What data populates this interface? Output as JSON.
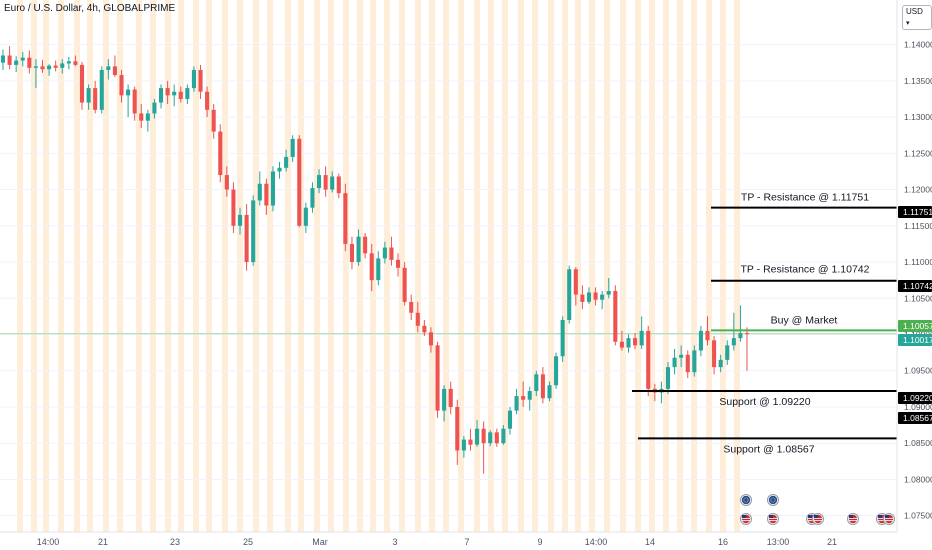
{
  "header": {
    "title": "Euro / U.S. Dollar, 4h, GLOBALPRIME"
  },
  "currency_button": {
    "label": "USD",
    "icon": "chevron-down-icon"
  },
  "colors": {
    "up": "#26a69a",
    "down": "#ef5350",
    "session": "#fde7cc",
    "level": "#000000",
    "buy": "#4caf50",
    "grid": "#f0f3fa",
    "current_line": "#a5d6a7",
    "text": "#131722",
    "axis_text": "#50535e"
  },
  "chart_data": {
    "type": "candlestick",
    "title": "Euro / U.S. Dollar, 4h, GLOBALPRIME",
    "xlabel": "",
    "ylabel": "",
    "ylim": [
      1.0733,
      1.1445
    ],
    "grid": true,
    "y_ticks": [
      "1.14000",
      "1.13500",
      "1.13000",
      "1.12500",
      "1.12000",
      "1.11500",
      "1.11000",
      "1.10500",
      "1.10000",
      "1.09500",
      "1.09000",
      "1.08500",
      "1.08000",
      "1.07500"
    ],
    "x_ticks": [
      "14:00",
      "21",
      "23",
      "25",
      "Mar",
      "3",
      "7",
      "9",
      "14:00",
      "14",
      "16",
      "13:00",
      "21"
    ],
    "price_tags": [
      {
        "name": "tp-2",
        "value": "1.11751",
        "color": "#000000"
      },
      {
        "name": "tp-1",
        "value": "1.10742",
        "color": "#000000"
      },
      {
        "name": "buy-price",
        "value": "1.10057",
        "color": "#4caf50"
      },
      {
        "name": "last-price",
        "value": "1.10017",
        "color": "#26a69a"
      },
      {
        "name": "support-1",
        "value": "1.09220",
        "color": "#000000"
      },
      {
        "name": "support-2",
        "value": "1.08567",
        "color": "#000000"
      }
    ],
    "levels": [
      {
        "name": "tp-resistance-2",
        "price": 1.11751,
        "label": "TP - Resistance @ 1.11751",
        "color": "#000000"
      },
      {
        "name": "tp-resistance-1",
        "price": 1.10742,
        "label": "TP - Resistance @ 1.10742",
        "color": "#000000"
      },
      {
        "name": "buy-level",
        "price": 1.10057,
        "label": "Buy @ Market",
        "color": "#4caf50"
      },
      {
        "name": "support-1",
        "price": 1.0922,
        "label": "Support @ 1.09220",
        "color": "#000000"
      },
      {
        "name": "support-2",
        "price": 1.08567,
        "label": "Support @ 1.08567",
        "color": "#000000"
      }
    ],
    "candles": [
      [
        1.1375,
        1.1393,
        1.1365,
        1.1385
      ],
      [
        1.1385,
        1.1398,
        1.1366,
        1.1372
      ],
      [
        1.1372,
        1.1384,
        1.1362,
        1.1378
      ],
      [
        1.1378,
        1.139,
        1.137,
        1.1382
      ],
      [
        1.1382,
        1.1392,
        1.136,
        1.1368
      ],
      [
        1.1368,
        1.138,
        1.134,
        1.137
      ],
      [
        1.137,
        1.1379,
        1.1361,
        1.1366
      ],
      [
        1.1366,
        1.1373,
        1.1357,
        1.1371
      ],
      [
        1.1371,
        1.1378,
        1.1363,
        1.1368
      ],
      [
        1.1368,
        1.138,
        1.136,
        1.1374
      ],
      [
        1.1374,
        1.1383,
        1.1366,
        1.1377
      ],
      [
        1.1377,
        1.1385,
        1.137,
        1.1372
      ],
      [
        1.1372,
        1.1376,
        1.131,
        1.132
      ],
      [
        1.132,
        1.1345,
        1.131,
        1.134
      ],
      [
        1.134,
        1.135,
        1.1305,
        1.131
      ],
      [
        1.131,
        1.137,
        1.1305,
        1.1365
      ],
      [
        1.1365,
        1.138,
        1.1352,
        1.137
      ],
      [
        1.137,
        1.1385,
        1.1355,
        1.1358
      ],
      [
        1.1358,
        1.1365,
        1.132,
        1.133
      ],
      [
        1.133,
        1.1345,
        1.13,
        1.1338
      ],
      [
        1.1338,
        1.1342,
        1.1295,
        1.1305
      ],
      [
        1.1305,
        1.1318,
        1.1285,
        1.1295
      ],
      [
        1.1295,
        1.131,
        1.128,
        1.1305
      ],
      [
        1.1305,
        1.1325,
        1.1298,
        1.132
      ],
      [
        1.132,
        1.1345,
        1.1312,
        1.134
      ],
      [
        1.134,
        1.135,
        1.1318,
        1.133
      ],
      [
        1.133,
        1.1345,
        1.1315,
        1.1335
      ],
      [
        1.1335,
        1.1342,
        1.132,
        1.1325
      ],
      [
        1.1325,
        1.1345,
        1.1318,
        1.134
      ],
      [
        1.134,
        1.137,
        1.1335,
        1.1365
      ],
      [
        1.1365,
        1.1372,
        1.1325,
        1.1335
      ],
      [
        1.1335,
        1.1342,
        1.13,
        1.131
      ],
      [
        1.131,
        1.1318,
        1.127,
        1.128
      ],
      [
        1.128,
        1.129,
        1.121,
        1.122
      ],
      [
        1.122,
        1.1232,
        1.119,
        1.12
      ],
      [
        1.12,
        1.121,
        1.114,
        1.115
      ],
      [
        1.115,
        1.1175,
        1.1138,
        1.1165
      ],
      [
        1.1165,
        1.118,
        1.1088,
        1.11
      ],
      [
        1.11,
        1.1192,
        1.1095,
        1.1185
      ],
      [
        1.1185,
        1.1225,
        1.1178,
        1.1208
      ],
      [
        1.1208,
        1.1215,
        1.1165,
        1.1178
      ],
      [
        1.1178,
        1.1232,
        1.117,
        1.1225
      ],
      [
        1.1225,
        1.1238,
        1.1215,
        1.123
      ],
      [
        1.123,
        1.1255,
        1.1225,
        1.1245
      ],
      [
        1.1245,
        1.1275,
        1.1238,
        1.127
      ],
      [
        1.127,
        1.1275,
        1.1148,
        1.115
      ],
      [
        1.115,
        1.1182,
        1.114,
        1.1175
      ],
      [
        1.1175,
        1.121,
        1.1168,
        1.1202
      ],
      [
        1.1202,
        1.1228,
        1.1195,
        1.122
      ],
      [
        1.122,
        1.1232,
        1.119,
        1.12
      ],
      [
        1.12,
        1.1225,
        1.1196,
        1.1218
      ],
      [
        1.1218,
        1.1222,
        1.1188,
        1.1195
      ],
      [
        1.1195,
        1.1208,
        1.1115,
        1.1125
      ],
      [
        1.1125,
        1.1135,
        1.109,
        1.11
      ],
      [
        1.11,
        1.1145,
        1.1095,
        1.1135
      ],
      [
        1.1135,
        1.114,
        1.1105,
        1.1112
      ],
      [
        1.1112,
        1.1125,
        1.106,
        1.1075
      ],
      [
        1.1075,
        1.1115,
        1.1068,
        1.1105
      ],
      [
        1.1105,
        1.1128,
        1.1098,
        1.112
      ],
      [
        1.112,
        1.1135,
        1.1095,
        1.1103
      ],
      [
        1.1103,
        1.1112,
        1.108,
        1.1092
      ],
      [
        1.1092,
        1.11,
        1.104,
        1.1045
      ],
      [
        1.1045,
        1.1055,
        1.102,
        1.103
      ],
      [
        1.103,
        1.1045,
        1.1003,
        1.1012
      ],
      [
        1.1012,
        1.102,
        1.0998,
        1.1003
      ],
      [
        1.1003,
        1.101,
        1.0975,
        1.0985
      ],
      [
        1.0985,
        1.099,
        1.0885,
        1.0895
      ],
      [
        1.0895,
        1.093,
        1.088,
        1.0925
      ],
      [
        1.0925,
        1.0935,
        1.089,
        1.09
      ],
      [
        1.09,
        1.091,
        1.082,
        1.084
      ],
      [
        1.084,
        1.086,
        1.083,
        1.0855
      ],
      [
        1.0855,
        1.087,
        1.084,
        1.0848
      ],
      [
        1.0848,
        1.0882,
        1.0845,
        1.087
      ],
      [
        1.087,
        1.088,
        1.0808,
        1.085
      ],
      [
        1.085,
        1.0868,
        1.0846,
        1.0865
      ],
      [
        1.0865,
        1.087,
        1.0845,
        1.085
      ],
      [
        1.085,
        1.0875,
        1.0848,
        1.087
      ],
      [
        1.087,
        1.09,
        1.0862,
        1.0895
      ],
      [
        1.0895,
        1.0925,
        1.089,
        1.0915
      ],
      [
        1.0915,
        1.0935,
        1.09,
        1.091
      ],
      [
        1.091,
        1.0928,
        1.0895,
        1.0922
      ],
      [
        1.0922,
        1.095,
        1.0915,
        1.0945
      ],
      [
        1.0945,
        1.0955,
        1.0905,
        1.0912
      ],
      [
        1.0912,
        1.0935,
        1.0908,
        1.093
      ],
      [
        1.093,
        1.0975,
        1.0925,
        1.097
      ],
      [
        1.097,
        1.1025,
        1.0962,
        1.102
      ],
      [
        1.102,
        1.1095,
        1.1015,
        1.109
      ],
      [
        1.109,
        1.1093,
        1.104,
        1.1055
      ],
      [
        1.1055,
        1.1068,
        1.1035,
        1.1045
      ],
      [
        1.1045,
        1.1065,
        1.1042,
        1.1058
      ],
      [
        1.1058,
        1.1065,
        1.104,
        1.1048
      ],
      [
        1.1048,
        1.106,
        1.1035,
        1.1055
      ],
      [
        1.1055,
        1.1078,
        1.105,
        1.106
      ],
      [
        1.106,
        1.1068,
        1.0985,
        1.099
      ],
      [
        1.099,
        1.1005,
        1.0978,
        1.0982
      ],
      [
        1.0982,
        1.1,
        1.0975,
        1.0995
      ],
      [
        1.0995,
        1.1002,
        1.098,
        1.0985
      ],
      [
        1.0985,
        1.1025,
        1.098,
        1.1005
      ],
      [
        1.1005,
        1.1012,
        1.0915,
        1.0925
      ],
      [
        1.0925,
        1.0932,
        1.0908,
        1.092
      ],
      [
        1.092,
        1.0935,
        1.0905,
        1.0925
      ],
      [
        1.0925,
        1.0962,
        1.0918,
        1.0955
      ],
      [
        1.0955,
        1.098,
        1.0945,
        1.0968
      ],
      [
        1.0968,
        1.0985,
        1.0955,
        1.0972
      ],
      [
        1.0972,
        1.0978,
        1.094,
        1.0948
      ],
      [
        1.0948,
        1.0985,
        1.0942,
        1.0978
      ],
      [
        1.0978,
        1.1012,
        1.097,
        1.1005
      ],
      [
        1.1005,
        1.1025,
        1.0985,
        1.0992
      ],
      [
        1.0992,
        1.0998,
        1.0945,
        1.0955
      ],
      [
        1.0955,
        1.0972,
        1.0948,
        1.0965
      ],
      [
        1.0965,
        1.0992,
        1.0958,
        1.0985
      ],
      [
        1.0985,
        1.103,
        1.0978,
        1.0995
      ],
      [
        1.0995,
        1.104,
        1.099,
        1.1002
      ],
      [
        1.1002,
        1.101,
        1.095,
        1.1001
      ]
    ],
    "sessions": [
      20,
      34,
      46,
      61,
      77,
      90,
      106,
      120,
      139,
      153,
      168,
      181,
      196,
      209,
      225,
      240,
      256,
      270,
      288,
      301,
      317,
      331,
      346,
      360,
      373,
      387,
      402,
      418,
      432,
      446,
      461,
      477,
      491,
      505,
      521,
      535,
      551,
      565,
      578,
      592,
      607,
      623,
      638,
      652,
      666,
      680,
      694,
      709,
      723,
      737
    ]
  },
  "events": [
    {
      "name": "event-flag-1",
      "icon": "eu-flag-icon",
      "col": 0
    },
    {
      "name": "event-flag-2",
      "icon": "us-flag-icon",
      "col": 0
    },
    {
      "name": "event-flag-3",
      "icon": "eu-flag-icon",
      "col": 1
    },
    {
      "name": "event-flag-4",
      "icon": "us-flag-icon",
      "col": 1
    },
    {
      "name": "event-flag-5",
      "icon": "us-flag-icon",
      "col": 2
    },
    {
      "name": "event-flag-6",
      "icon": "us-flag-icon",
      "col": 3
    },
    {
      "name": "event-flag-7",
      "icon": "us-flag-icon",
      "col": 4
    },
    {
      "name": "event-flag-8",
      "icon": "us-flag-icon",
      "col": 5
    },
    {
      "name": "event-flag-9",
      "icon": "us-flag-icon",
      "col": 6
    }
  ]
}
